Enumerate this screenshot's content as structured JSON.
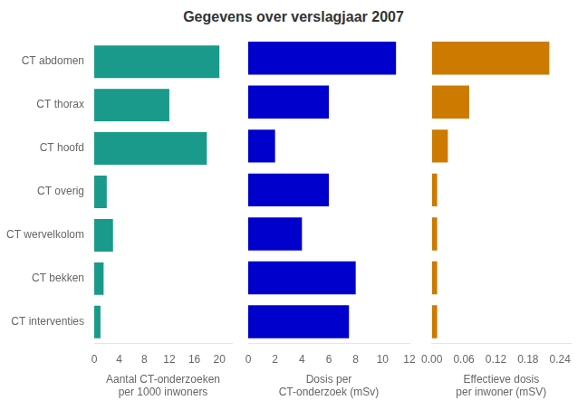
{
  "chart_data": [
    {
      "type": "bar",
      "orientation": "horizontal",
      "title": "Gegevens over verslagjaar 2007",
      "categories": [
        "CT abdomen",
        "CT thorax",
        "CT hoofd",
        "CT overig",
        "CT wervelkolom",
        "CT bekken",
        "CT interventies"
      ],
      "values": [
        20,
        12,
        18,
        2,
        3,
        1.5,
        1.0
      ],
      "color": "#1a9a8a",
      "xlabel": "Aantal CT-onderzoeken\nper 1000 inwoners",
      "xlim": [
        0,
        22
      ],
      "xticks": [
        0,
        4,
        8,
        12,
        16,
        20
      ],
      "grid": false
    },
    {
      "type": "bar",
      "orientation": "horizontal",
      "categories": [
        "CT abdomen",
        "CT thorax",
        "CT hoofd",
        "CT overig",
        "CT wervelkolom",
        "CT bekken",
        "CT interventies"
      ],
      "values": [
        11,
        6,
        2,
        6,
        4,
        8,
        7.5
      ],
      "color": "#0000cc",
      "xlabel": "Dosis per\nCT-onderzoek (mSv)",
      "xlim": [
        0,
        12
      ],
      "xticks": [
        0,
        2,
        4,
        6,
        8,
        10,
        12
      ],
      "grid": false,
      "tick_labels": "x"
    },
    {
      "type": "bar",
      "orientation": "horizontal",
      "categories": [
        "CT abdomen",
        "CT thorax",
        "CT hoofd",
        "CT overig",
        "CT wervelkolom",
        "CT bekken",
        "CT interventies"
      ],
      "values": [
        0.22,
        0.07,
        0.03,
        0.01,
        0.01,
        0.01,
        0.01
      ],
      "color": "#cc7a00",
      "xlabel": "Effectieve dosis\nper inwoner (mSV)",
      "xlim": [
        0.0,
        0.26
      ],
      "xticks": [
        {
          "value": 0.0,
          "label": "0.00"
        },
        0.06,
        0.12,
        0.18,
        0.24
      ],
      "grid": false,
      "tick_labels": "x"
    }
  ]
}
